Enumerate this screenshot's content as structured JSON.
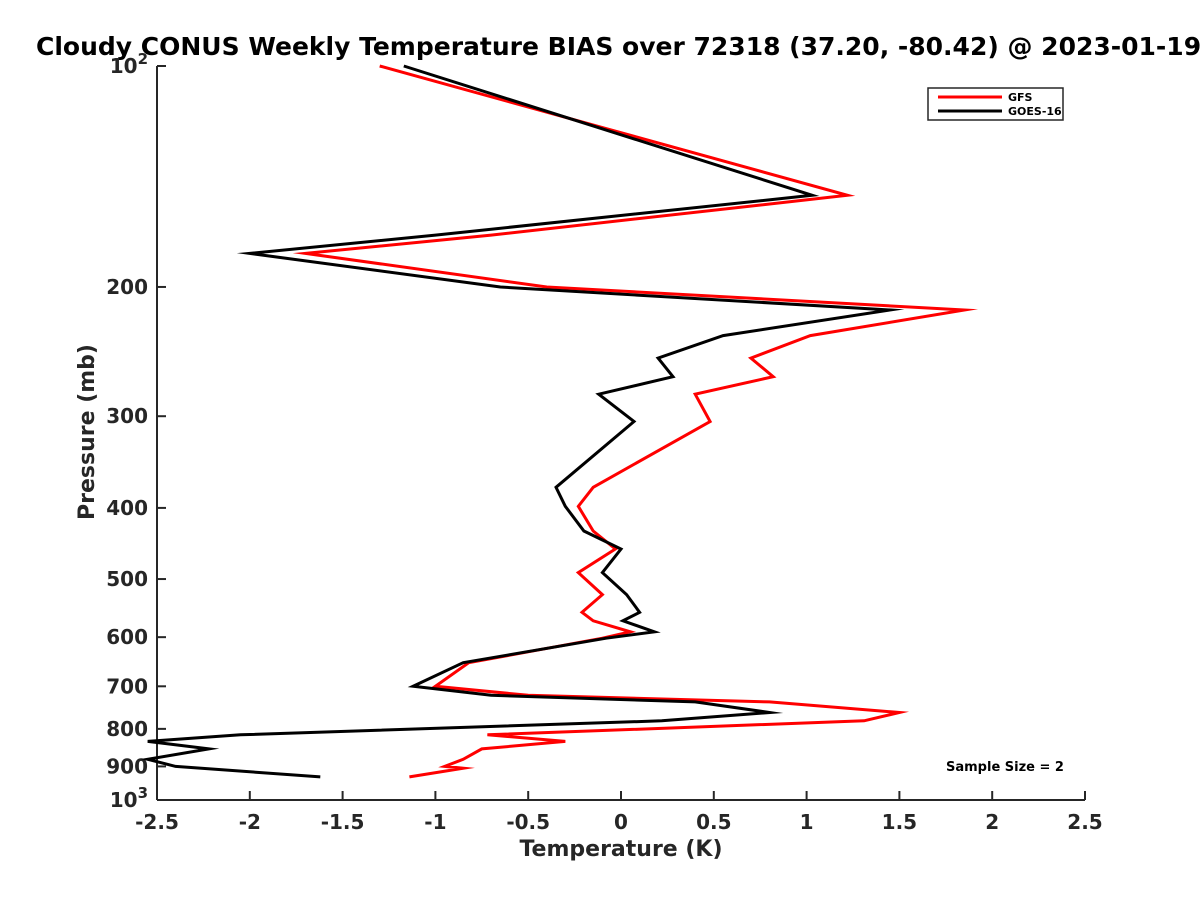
{
  "chart_data": {
    "type": "line",
    "title": "Cloudy CONUS Weekly Temperature BIAS over 72318 (37.20, -80.42) @ 2023-01-19",
    "xlabel": "Temperature (K)",
    "ylabel": "Pressure (mb)",
    "xlim": [
      -2.5,
      2.5
    ],
    "ylim": [
      100,
      1000
    ],
    "yscale": "log",
    "y_reversed": true,
    "x_ticks": [
      "-2.5",
      "-2",
      "-1.5",
      "-1",
      "-0.5",
      "0",
      "0.5",
      "1",
      "1.5",
      "2",
      "2.5"
    ],
    "y_ticks": [
      {
        "value": 100,
        "base": "10",
        "exp": "2"
      },
      {
        "value": 200,
        "label": "200"
      },
      {
        "value": 300,
        "label": "300"
      },
      {
        "value": 400,
        "label": "400"
      },
      {
        "value": 500,
        "label": "500"
      },
      {
        "value": 600,
        "label": "600"
      },
      {
        "value": 700,
        "label": "700"
      },
      {
        "value": 800,
        "label": "800"
      },
      {
        "value": 900,
        "label": "900"
      },
      {
        "value": 1000,
        "base": "10",
        "exp": "3"
      }
    ],
    "legend_position": "top-right",
    "annotation": "Sample Size = 2",
    "series": [
      {
        "name": "GFS",
        "color": "#ff0000",
        "points": [
          [
            -1.3,
            100
          ],
          [
            1.22,
            150
          ],
          [
            -0.7,
            170
          ],
          [
            -1.7,
            180
          ],
          [
            -0.4,
            200
          ],
          [
            1.85,
            215
          ],
          [
            1.02,
            233
          ],
          [
            0.7,
            250
          ],
          [
            0.82,
            265
          ],
          [
            0.4,
            280
          ],
          [
            0.48,
            305
          ],
          [
            -0.15,
            375
          ],
          [
            -0.23,
            398
          ],
          [
            -0.15,
            430
          ],
          [
            -0.03,
            455
          ],
          [
            -0.23,
            490
          ],
          [
            -0.1,
            525
          ],
          [
            -0.21,
            555
          ],
          [
            -0.15,
            570
          ],
          [
            0.05,
            590
          ],
          [
            -0.1,
            602
          ],
          [
            -0.82,
            650
          ],
          [
            -1.0,
            700
          ],
          [
            -0.5,
            720
          ],
          [
            0.8,
            735
          ],
          [
            1.5,
            760
          ],
          [
            1.31,
            780
          ],
          [
            -0.72,
            815
          ],
          [
            -0.3,
            832
          ],
          [
            -0.75,
            852
          ],
          [
            -0.85,
            880
          ],
          [
            -0.95,
            900
          ],
          [
            -0.85,
            905
          ],
          [
            -1.14,
            930
          ]
        ]
      },
      {
        "name": "GOES-16",
        "color": "#000000",
        "points": [
          [
            -1.17,
            100
          ],
          [
            1.03,
            150
          ],
          [
            -1.0,
            170
          ],
          [
            -2.0,
            180
          ],
          [
            -0.65,
            200
          ],
          [
            1.45,
            215
          ],
          [
            0.55,
            233
          ],
          [
            0.2,
            250
          ],
          [
            0.28,
            265
          ],
          [
            -0.12,
            280
          ],
          [
            0.07,
            305
          ],
          [
            -0.35,
            375
          ],
          [
            -0.3,
            398
          ],
          [
            -0.2,
            430
          ],
          [
            0.0,
            455
          ],
          [
            -0.1,
            490
          ],
          [
            0.03,
            525
          ],
          [
            0.1,
            555
          ],
          [
            0.01,
            570
          ],
          [
            0.18,
            590
          ],
          [
            -0.08,
            602
          ],
          [
            -0.85,
            650
          ],
          [
            -1.12,
            700
          ],
          [
            -0.7,
            720
          ],
          [
            0.4,
            735
          ],
          [
            0.8,
            760
          ],
          [
            0.22,
            780
          ],
          [
            -2.05,
            815
          ],
          [
            -2.55,
            832
          ],
          [
            -2.22,
            852
          ],
          [
            -2.55,
            880
          ],
          [
            -2.4,
            900
          ],
          [
            -1.62,
            930
          ]
        ]
      }
    ]
  }
}
